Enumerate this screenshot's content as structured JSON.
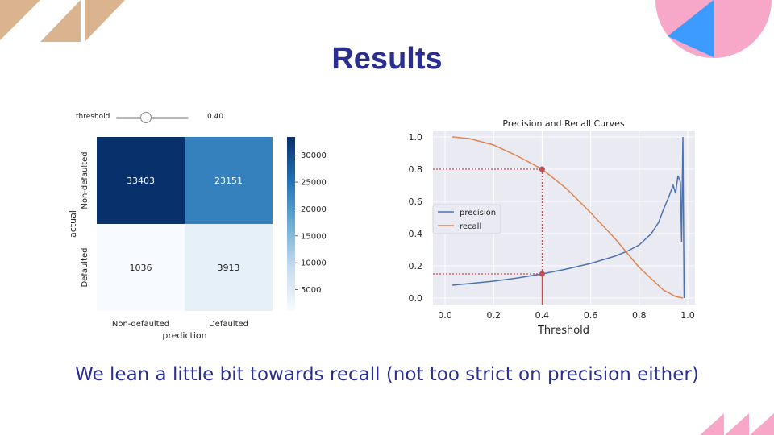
{
  "slide": {
    "title": "Results",
    "caption": "We lean a little bit towards recall (not too strict on precision either)"
  },
  "colors": {
    "title": "#2a2f8f",
    "deco_tan": "#d9b48f",
    "deco_pink": "#f7a8c8",
    "deco_blue": "#3d9bff",
    "precision": "#4c72b0",
    "recall": "#dd8452",
    "marker": "#c44e52"
  },
  "widget": {
    "label": "threshold",
    "value": "0.40",
    "value_num": 0.4
  },
  "chart_data": [
    {
      "type": "heatmap",
      "title": "",
      "xlabel": "prediction",
      "ylabel": "actual",
      "x_categories": [
        "Non-defaulted",
        "Defaulted"
      ],
      "y_categories": [
        "Non-defaulted",
        "Defaulted"
      ],
      "values": [
        [
          33403,
          23151
        ],
        [
          1036,
          3913
        ]
      ],
      "colorbar": {
        "min": 1036,
        "max": 33403,
        "ticks": [
          5000,
          10000,
          15000,
          20000,
          25000,
          30000
        ],
        "colormap": "Blues"
      }
    },
    {
      "type": "line",
      "title": "Precision and Recall Curves",
      "xlabel": "Threshold",
      "ylabel": "",
      "xlim": [
        -0.05,
        1.03
      ],
      "ylim": [
        -0.04,
        1.04
      ],
      "xticks": [
        "0.0",
        "0.2",
        "0.4",
        "0.6",
        "0.8",
        "1.0"
      ],
      "yticks": [
        "0.0",
        "0.2",
        "0.4",
        "0.6",
        "0.8",
        "1.0"
      ],
      "legend": "center-left",
      "grid": true,
      "series": [
        {
          "name": "precision",
          "x": [
            0.03,
            0.1,
            0.2,
            0.3,
            0.4,
            0.5,
            0.6,
            0.7,
            0.75,
            0.8,
            0.85,
            0.88,
            0.9,
            0.92,
            0.94,
            0.95,
            0.96,
            0.97,
            0.975,
            0.98,
            0.985
          ],
          "y": [
            0.08,
            0.09,
            0.105,
            0.125,
            0.15,
            0.18,
            0.215,
            0.26,
            0.29,
            0.33,
            0.4,
            0.47,
            0.55,
            0.62,
            0.7,
            0.65,
            0.76,
            0.72,
            0.35,
            1.0,
            0.0
          ]
        },
        {
          "name": "recall",
          "x": [
            0.03,
            0.1,
            0.2,
            0.3,
            0.35,
            0.4,
            0.5,
            0.6,
            0.7,
            0.8,
            0.85,
            0.9,
            0.95,
            0.98
          ],
          "y": [
            1.0,
            0.99,
            0.95,
            0.88,
            0.84,
            0.8,
            0.68,
            0.53,
            0.37,
            0.19,
            0.12,
            0.05,
            0.01,
            0.0
          ]
        }
      ],
      "markers": [
        {
          "x": 0.4,
          "y": 0.8
        },
        {
          "x": 0.4,
          "y": 0.15
        }
      ]
    }
  ]
}
